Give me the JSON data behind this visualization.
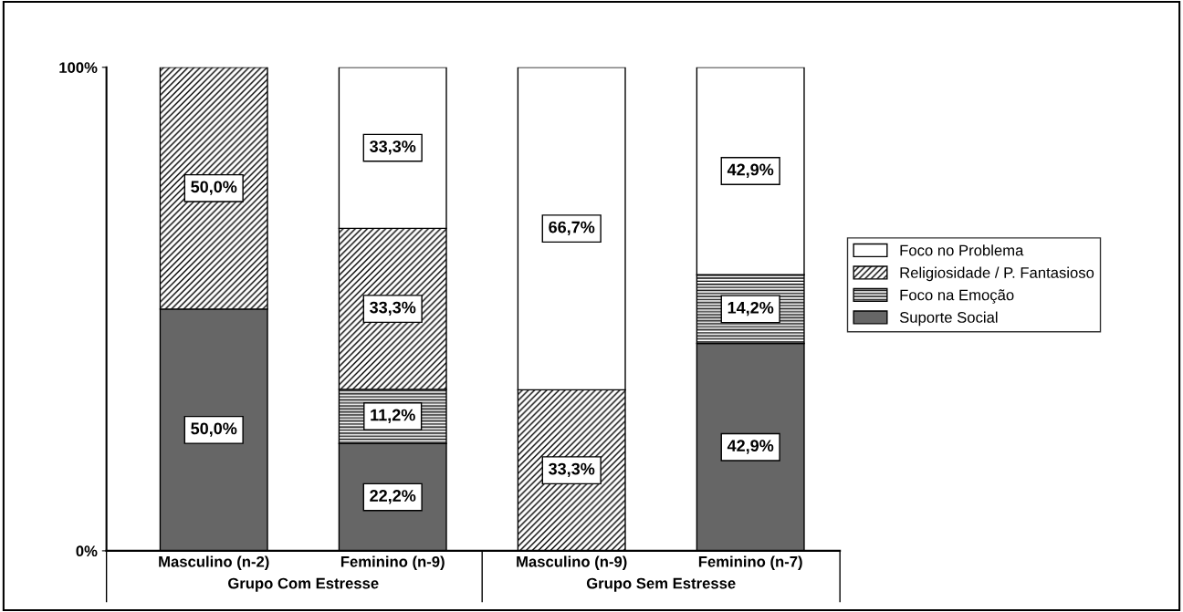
{
  "chart_data": {
    "type": "bar",
    "stacked": true,
    "categories": [
      "Masculino (n-2)",
      "Feminino (n-9)",
      "Masculino (n-9)",
      "Feminino (n-7)"
    ],
    "series": [
      {
        "name": "Suporte Social",
        "color": "#666666",
        "values": [
          50.0,
          22.2,
          null,
          42.9
        ],
        "value_labels": [
          "50,0%",
          "22,2%",
          null,
          "42,9%"
        ]
      },
      {
        "name": "Foco na Emoção",
        "color": "#000000",
        "values": [
          null,
          11.2,
          null,
          14.2
        ],
        "value_labels": [
          null,
          "11,2%",
          null,
          "14,2%"
        ]
      },
      {
        "name": "Religiosidade / P. Fantasioso",
        "color": "#000000",
        "values": [
          50.0,
          33.3,
          33.3,
          null
        ],
        "value_labels": [
          "50,0%",
          "33,3%",
          "33,3%",
          null
        ]
      },
      {
        "name": "Foco no Problema",
        "color": "#ffffff",
        "values": [
          null,
          33.3,
          66.7,
          42.9
        ],
        "value_labels": [
          null,
          "33,3%",
          "66,7%",
          "42,9%"
        ]
      }
    ],
    "ylim": [
      0,
      100
    ],
    "yticks": [
      {
        "value": 0,
        "label": "0%"
      },
      {
        "value": 100,
        "label": "100%"
      }
    ],
    "grid": false,
    "legend": "right",
    "annotations": [
      "Grupo Com Estresse",
      "Grupo Sem Estresse"
    ]
  }
}
